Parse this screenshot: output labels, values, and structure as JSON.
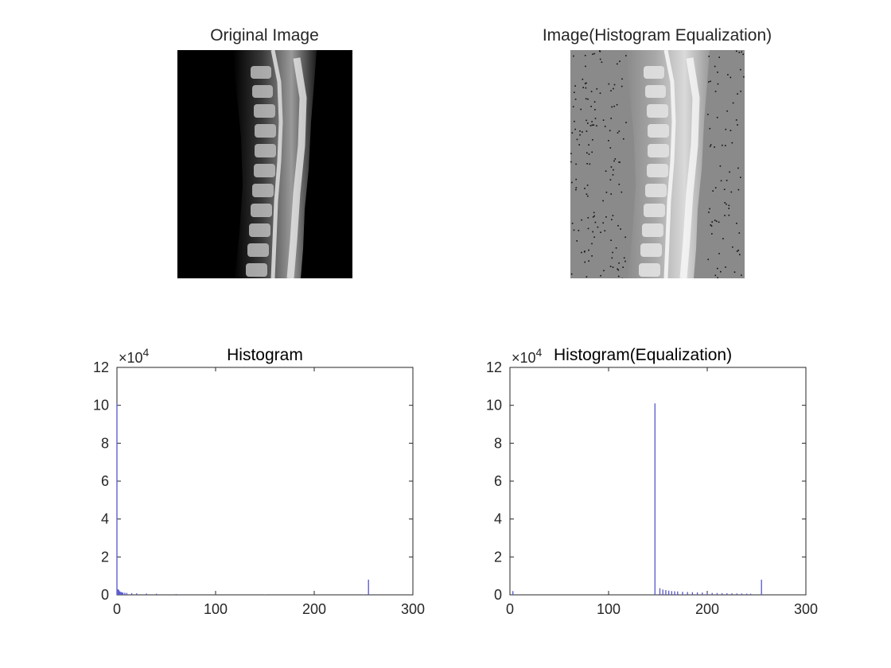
{
  "panels": {
    "original": {
      "title": "Original Image"
    },
    "equalized": {
      "title": "Image(Histogram Equalization)"
    }
  },
  "chart_data": [
    {
      "type": "bar",
      "title": "Histogram",
      "xlabel": "",
      "ylabel": "",
      "xlim": [
        0,
        300
      ],
      "ylim": [
        0,
        120000
      ],
      "xticks": [
        "0",
        "100",
        "200",
        "300"
      ],
      "yticks": [
        "0",
        "2",
        "4",
        "6",
        "8",
        "10",
        "12"
      ],
      "y_exponent_label": "×10",
      "y_exponent": "4",
      "bar_color": "#5555cc",
      "grid": false,
      "x": [
        0,
        1,
        2,
        3,
        4,
        5,
        6,
        8,
        10,
        15,
        20,
        30,
        40,
        60,
        100,
        150,
        200,
        250,
        255
      ],
      "values": [
        101000,
        3000,
        2500,
        1800,
        1500,
        1300,
        1200,
        1100,
        1000,
        900,
        800,
        700,
        600,
        400,
        200,
        150,
        150,
        150,
        8000
      ]
    },
    {
      "type": "bar",
      "title": "Histogram(Equalization)",
      "xlabel": "",
      "ylabel": "",
      "xlim": [
        0,
        300
      ],
      "ylim": [
        0,
        120000
      ],
      "xticks": [
        "0",
        "100",
        "200",
        "300"
      ],
      "yticks": [
        "0",
        "2",
        "4",
        "6",
        "8",
        "10",
        "12"
      ],
      "y_exponent_label": "×10",
      "y_exponent": "4",
      "bar_color": "#5555cc",
      "grid": false,
      "x": [
        3,
        147,
        152,
        155,
        158,
        161,
        164,
        167,
        170,
        175,
        180,
        185,
        190,
        195,
        200,
        205,
        210,
        215,
        220,
        225,
        230,
        235,
        240,
        244,
        255
      ],
      "values": [
        2000,
        101000,
        3500,
        2800,
        2500,
        2200,
        2000,
        1900,
        1800,
        1600,
        1500,
        1400,
        1300,
        1200,
        1100,
        1000,
        950,
        900,
        850,
        800,
        750,
        700,
        650,
        600,
        8000
      ]
    }
  ]
}
